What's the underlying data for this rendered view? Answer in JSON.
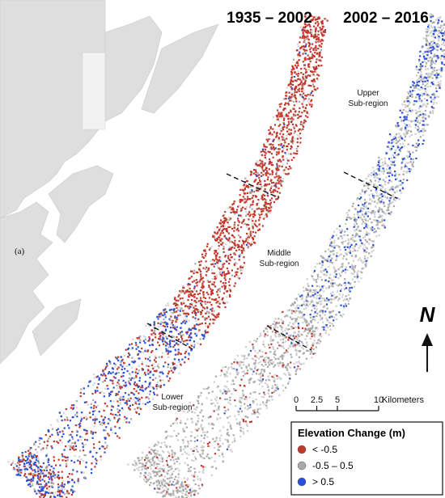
{
  "panel_label": "(a)",
  "periods": [
    "1935 – 2002",
    "2002 – 2016"
  ],
  "regions": [
    {
      "lines": [
        "Upper",
        "Sub-region"
      ]
    },
    {
      "lines": [
        "Middle",
        "Sub-region"
      ]
    },
    {
      "lines": [
        "Lower",
        "Sub-region"
      ]
    }
  ],
  "north": "N",
  "scale_bar": {
    "ticks": [
      0,
      2.5,
      5,
      10
    ],
    "unit": "Kilometers"
  },
  "legend": {
    "title": "Elevation Change (m)",
    "items": [
      {
        "label": "< -0.5",
        "color": "#c0392b"
      },
      {
        "label": "-0.5 – 0.5",
        "color": "#a9a9a9"
      },
      {
        "label": "> 0.5",
        "color": "#2a4fd8"
      }
    ]
  }
}
